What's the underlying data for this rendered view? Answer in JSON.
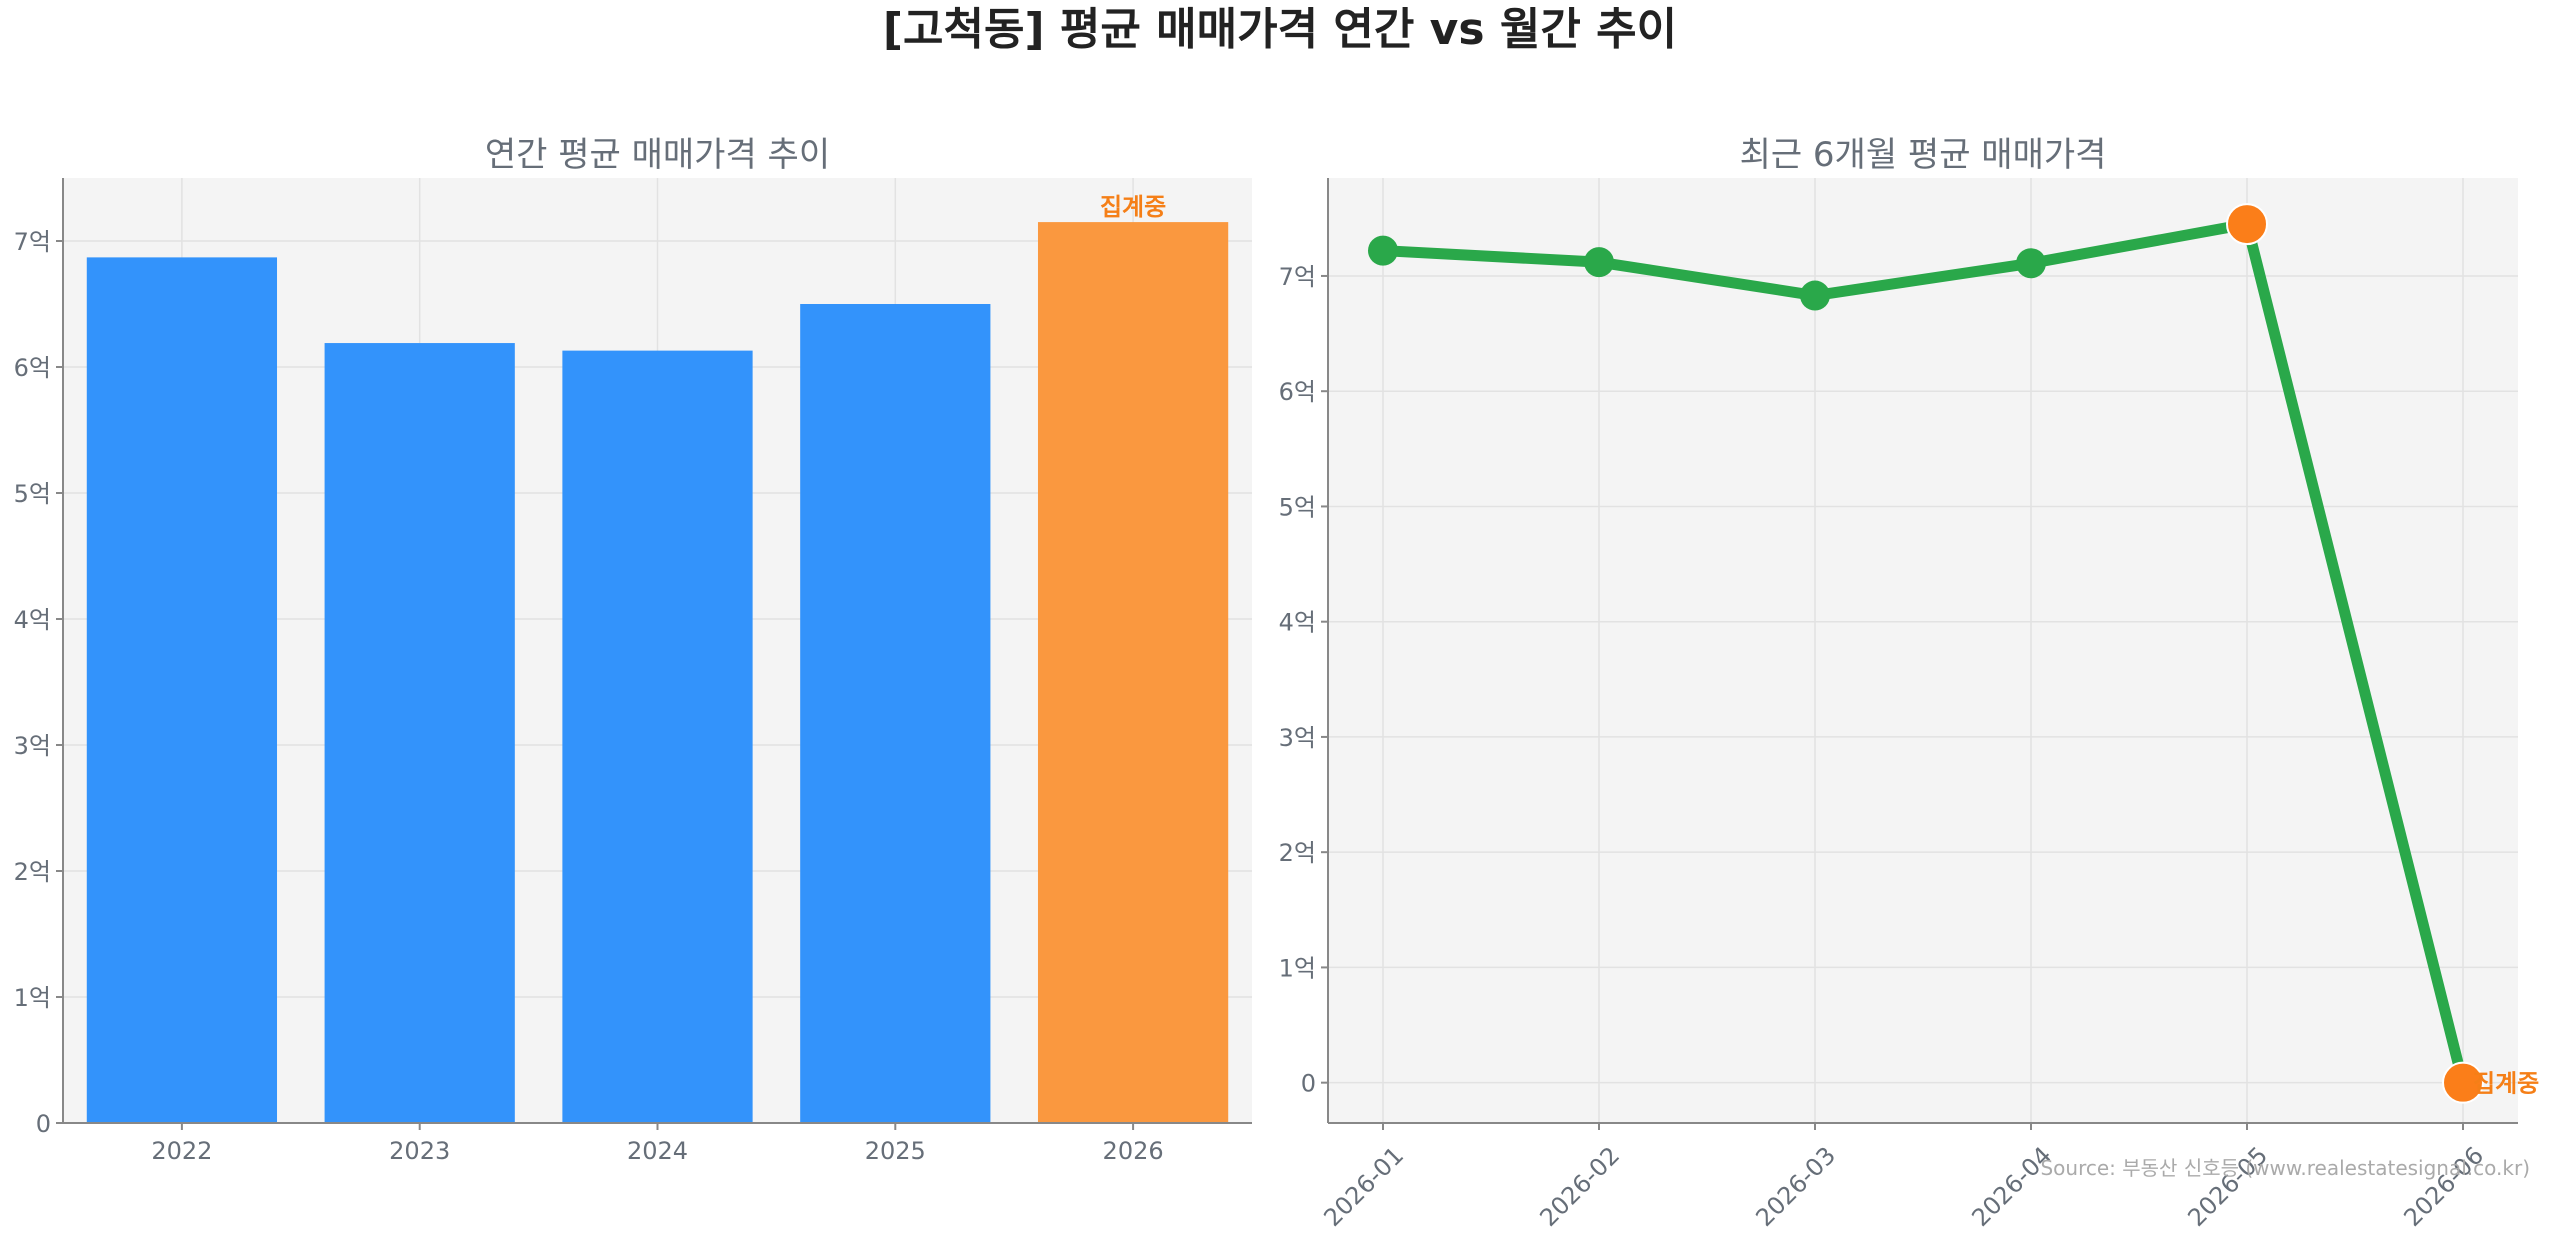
{
  "title": "[고척동] 평균 매매가격 연간 vs 월간 추이",
  "source": "Source: 부동산 신호등 (www.realestatesignal.co.kr)",
  "colors": {
    "bar": "#3393fb",
    "bar_partial": "#fa983f",
    "line": "#2aa84a",
    "marker_partial": "#fb7e19",
    "status_text": "#f57f17"
  },
  "chart_data": [
    {
      "type": "bar",
      "title": "연간 평균 매매가격 추이",
      "categories": [
        "2022",
        "2023",
        "2024",
        "2025",
        "2026"
      ],
      "values": [
        6.87,
        6.19,
        6.13,
        6.5,
        7.15
      ],
      "unit": "억",
      "ylim": [
        0,
        7.5
      ],
      "yticks": [
        0,
        1,
        2,
        3,
        4,
        5,
        6,
        7
      ],
      "ytick_labels": [
        "0",
        "1억",
        "2억",
        "3억",
        "4억",
        "5억",
        "6억",
        "7억"
      ],
      "grid": true,
      "partial_index": 4,
      "partial_label": "집계중"
    },
    {
      "type": "line",
      "title": "최근 6개월 평균 매매가격",
      "x": [
        "2026-01",
        "2026-02",
        "2026-03",
        "2026-04",
        "2026-05",
        "2026-06"
      ],
      "values": [
        7.22,
        7.12,
        6.83,
        7.11,
        7.45,
        0
      ],
      "unit": "억",
      "ylim": [
        -0.35,
        7.85
      ],
      "yticks": [
        0,
        1,
        2,
        3,
        4,
        5,
        6,
        7
      ],
      "ytick_labels": [
        "0",
        "1억",
        "2억",
        "3억",
        "4억",
        "5억",
        "6억",
        "7억"
      ],
      "grid": true,
      "highlight_indices": [
        4,
        5
      ],
      "partial_index": 5,
      "partial_label": "집계중"
    }
  ]
}
